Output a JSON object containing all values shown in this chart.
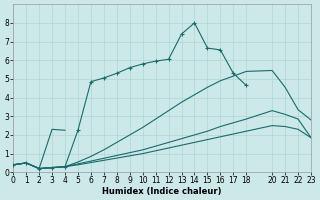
{
  "xlabel": "Humidex (Indice chaleur)",
  "bg_color": "#cce8e8",
  "line_color": "#1a6b6b",
  "grid_color": "#afd4d4",
  "line_marked": {
    "x": [
      0,
      1,
      2,
      3,
      4,
      5,
      6,
      7,
      8,
      9,
      10,
      11,
      12,
      13,
      14,
      15,
      16,
      17,
      18
    ],
    "y": [
      0.4,
      0.5,
      0.2,
      0.25,
      0.3,
      2.25,
      4.85,
      5.05,
      5.3,
      5.6,
      5.8,
      5.95,
      6.05,
      7.4,
      8.0,
      6.65,
      6.55,
      5.3,
      4.65
    ]
  },
  "line_medium": {
    "x": [
      0,
      1,
      2,
      3,
      4,
      5,
      6,
      7,
      8,
      9,
      10,
      11,
      12,
      13,
      14,
      15,
      16,
      17,
      18,
      20,
      21,
      22,
      23
    ],
    "y": [
      0.4,
      0.5,
      0.2,
      0.25,
      0.3,
      0.55,
      0.85,
      1.2,
      1.6,
      2.0,
      2.4,
      2.85,
      3.3,
      3.75,
      4.15,
      4.55,
      4.9,
      5.15,
      5.4,
      5.45,
      4.55,
      3.35,
      2.8
    ]
  },
  "line_slow": {
    "x": [
      0,
      1,
      2,
      3,
      4,
      5,
      6,
      7,
      8,
      9,
      10,
      11,
      12,
      13,
      14,
      15,
      16,
      17,
      18,
      20,
      21,
      22,
      23
    ],
    "y": [
      0.4,
      0.5,
      0.2,
      0.25,
      0.3,
      0.45,
      0.6,
      0.75,
      0.9,
      1.05,
      1.2,
      1.4,
      1.6,
      1.8,
      2.0,
      2.2,
      2.45,
      2.65,
      2.85,
      3.3,
      3.1,
      2.85,
      1.85
    ]
  },
  "line_flat": {
    "x": [
      0,
      1,
      2,
      3,
      4,
      5,
      6,
      7,
      8,
      9,
      10,
      11,
      12,
      13,
      14,
      15,
      16,
      17,
      18,
      20,
      21,
      22,
      23
    ],
    "y": [
      0.4,
      0.5,
      0.2,
      0.25,
      0.3,
      0.4,
      0.52,
      0.64,
      0.76,
      0.88,
      1.0,
      1.15,
      1.3,
      1.45,
      1.6,
      1.75,
      1.9,
      2.05,
      2.2,
      2.5,
      2.45,
      2.3,
      1.85
    ]
  },
  "line_spike": {
    "x": [
      0,
      1,
      2,
      3,
      4
    ],
    "y": [
      0.4,
      0.5,
      0.2,
      2.3,
      2.25
    ]
  },
  "xlim": [
    0,
    23
  ],
  "ylim": [
    0,
    9
  ],
  "yticks": [
    0,
    1,
    2,
    3,
    4,
    5,
    6,
    7,
    8
  ]
}
